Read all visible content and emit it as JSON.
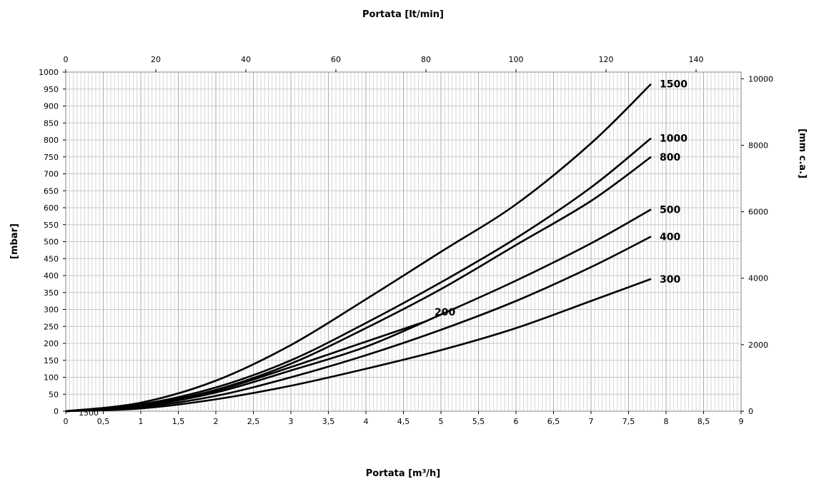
{
  "chart_data": {
    "type": "line",
    "title": "",
    "top_axis": {
      "label": "Portata [lt/min]",
      "ticks": [
        0,
        20,
        40,
        60,
        80,
        100,
        120,
        140
      ],
      "range": [
        0,
        150
      ]
    },
    "bottom_axis": {
      "label": "Portata [m³/h]",
      "ticks": [
        "0",
        "0,5",
        "1",
        "1,5",
        "2",
        "2,5",
        "3",
        "3,5",
        "4",
        "4,5",
        "5",
        "5,5",
        "6",
        "6,5",
        "7",
        "7,5",
        "8",
        "8,5",
        "9"
      ],
      "range": [
        0,
        9
      ]
    },
    "left_axis": {
      "label": "[mbar]",
      "ticks": [
        0,
        50,
        100,
        150,
        200,
        250,
        300,
        350,
        400,
        450,
        500,
        550,
        600,
        650,
        700,
        750,
        800,
        850,
        900,
        950,
        1000
      ],
      "range": [
        0,
        1000
      ]
    },
    "right_axis": {
      "label": "[mm c.a.]",
      "ticks": [
        0,
        2000,
        4000,
        6000,
        8000,
        10000
      ],
      "range": [
        0,
        10200
      ]
    },
    "grid": true,
    "stray_label": "1500",
    "series": [
      {
        "name": "1500",
        "x": [
          0,
          1,
          2,
          3,
          4,
          5,
          6,
          7,
          7.8
        ],
        "y": [
          0,
          25,
          90,
          195,
          330,
          470,
          610,
          790,
          965
        ]
      },
      {
        "name": "1000",
        "x": [
          0,
          1,
          2,
          3,
          4,
          5,
          6,
          7,
          7.8
        ],
        "y": [
          0,
          20,
          70,
          150,
          260,
          380,
          510,
          660,
          805
        ]
      },
      {
        "name": "800",
        "x": [
          0,
          1,
          2,
          3,
          4,
          5,
          6,
          7,
          7.8
        ],
        "y": [
          0,
          18,
          63,
          140,
          245,
          360,
          490,
          620,
          750
        ]
      },
      {
        "name": "200",
        "x": [
          0,
          1,
          2,
          3,
          4,
          4.8
        ],
        "y": [
          0,
          16,
          60,
          130,
          205,
          265
        ]
      },
      {
        "name": "500",
        "x": [
          0,
          1,
          2,
          3,
          4,
          5,
          6,
          7,
          7.8
        ],
        "y": [
          0,
          15,
          55,
          120,
          190,
          285,
          385,
          495,
          595
        ]
      },
      {
        "name": "400",
        "x": [
          0,
          1,
          2,
          3,
          4,
          5,
          6,
          7,
          7.8
        ],
        "y": [
          0,
          12,
          45,
          100,
          165,
          240,
          325,
          425,
          515
        ]
      },
      {
        "name": "300",
        "x": [
          0,
          1,
          2,
          3,
          4,
          5,
          6,
          7,
          7.8
        ],
        "y": [
          0,
          8,
          35,
          75,
          125,
          180,
          245,
          325,
          390
        ]
      }
    ]
  }
}
